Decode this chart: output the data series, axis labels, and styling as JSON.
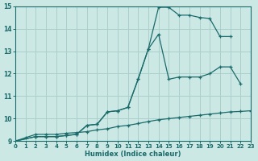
{
  "background_color": "#cce8e4",
  "grid_color": "#aacfcb",
  "line_color": "#1a6b6b",
  "xlabel": "Humidex (Indice chaleur)",
  "xlim": [
    0,
    23
  ],
  "ylim": [
    9,
    15
  ],
  "yticks": [
    9,
    10,
    11,
    12,
    13,
    14,
    15
  ],
  "xticks": [
    0,
    1,
    2,
    3,
    4,
    5,
    6,
    7,
    8,
    9,
    10,
    11,
    12,
    13,
    14,
    15,
    16,
    17,
    18,
    19,
    20,
    21,
    22,
    23
  ],
  "curve_top_x": [
    0,
    2,
    3,
    4,
    5,
    6,
    7,
    8,
    9,
    10,
    11,
    12,
    13,
    14,
    15,
    16,
    17,
    18,
    19,
    20,
    21
  ],
  "curve_top_y": [
    9.0,
    9.2,
    9.2,
    9.2,
    9.25,
    9.3,
    9.7,
    9.75,
    10.3,
    10.35,
    10.5,
    11.75,
    13.1,
    14.95,
    14.95,
    14.6,
    14.6,
    14.5,
    14.45,
    13.65,
    13.65
  ],
  "curve_mid_x": [
    0,
    2,
    3,
    4,
    5,
    6,
    7,
    8,
    9,
    10,
    11,
    12,
    13,
    14,
    15,
    16,
    17,
    18,
    19,
    20,
    21,
    22
  ],
  "curve_mid_y": [
    9.0,
    9.2,
    9.2,
    9.2,
    9.25,
    9.3,
    9.7,
    9.75,
    10.3,
    10.35,
    10.5,
    11.75,
    13.1,
    13.75,
    11.75,
    11.85,
    11.85,
    11.85,
    12.0,
    12.3,
    12.3,
    11.55
  ],
  "curve_bot_x": [
    0,
    1,
    2,
    3,
    4,
    5,
    6,
    7,
    8,
    9,
    10,
    11,
    12,
    13,
    14,
    15,
    16,
    17,
    18,
    19,
    20,
    21,
    22,
    23
  ],
  "curve_bot_y": [
    9.0,
    9.15,
    9.3,
    9.3,
    9.3,
    9.35,
    9.38,
    9.42,
    9.5,
    9.55,
    9.65,
    9.7,
    9.78,
    9.87,
    9.95,
    10.0,
    10.05,
    10.1,
    10.15,
    10.2,
    10.25,
    10.3,
    10.32,
    10.35
  ]
}
